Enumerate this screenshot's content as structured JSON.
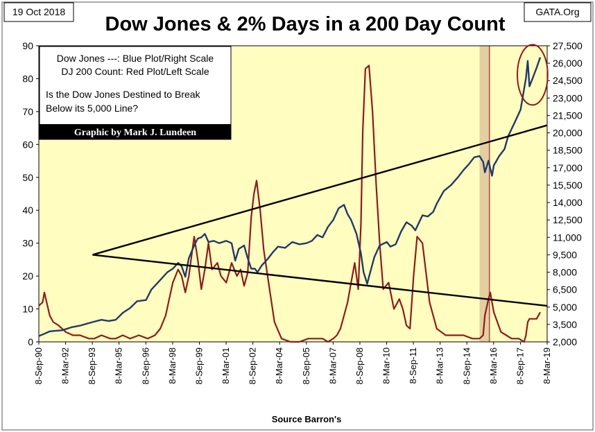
{
  "date_label": "19 Oct 2018",
  "source_label": "GATA.Org",
  "chart_data": {
    "type": "line",
    "title": "Dow Jones & 2% Days in a 200 Day Count",
    "xlabel": "Source Barron's",
    "x_ticks": [
      "8-Sep-90",
      "8-Mar-92",
      "8-Sep-93",
      "8-Mar-95",
      "8-Sep-96",
      "8-Mar-98",
      "8-Sep-99",
      "8-Mar-01",
      "8-Sep-02",
      "8-Mar-04",
      "8-Sep-05",
      "8-Mar-07",
      "8-Sep-08",
      "8-Mar-10",
      "8-Sep-11",
      "8-Mar-13",
      "8-Sep-14",
      "8-Mar-16",
      "8-Sep-17",
      "8-Mar-19"
    ],
    "x_range": [
      1990.69,
      2019.19
    ],
    "left_axis": {
      "label": "DJ 200 Count",
      "ylim": [
        0,
        90
      ],
      "ticks": [
        0,
        10,
        20,
        30,
        40,
        50,
        60,
        70,
        80,
        90
      ]
    },
    "right_axis": {
      "label": "Dow Jones",
      "ylim": [
        2000,
        27500
      ],
      "ticks": [
        "2,000",
        "3,500",
        "5,000",
        "6,500",
        "8,000",
        "9,500",
        "11,000",
        "12,500",
        "14,000",
        "15,500",
        "17,000",
        "18,500",
        "20,000",
        "21,500",
        "23,000",
        "24,500",
        "26,000",
        "27,500"
      ]
    },
    "legend_lines": [
      "Dow Jones ---: Blue Plot/Right Scale",
      "DJ 200 Count: Red Plot/Left Scale"
    ],
    "question_lines": [
      "Is the Dow Jones Destined to Break",
      "Below its 5,000 Line?"
    ],
    "credit": "Graphic by Mark J. Lundeen",
    "colors": {
      "plot_bg": "#fffdc0",
      "dow": "#1f3a68",
      "count": "#8b1c1c",
      "band": "#e3cfa0",
      "band_edge": "#b05050",
      "circle": "#8b1c1c",
      "trend": "#000000"
    },
    "series": [
      {
        "name": "Dow Jones",
        "axis": "right",
        "x": [
          1990.69,
          1991.0,
          1991.3,
          1991.6,
          1992.0,
          1992.5,
          1993.0,
          1993.7,
          1994.2,
          1994.6,
          1995.0,
          1995.4,
          1995.8,
          1996.2,
          1996.7,
          1997.0,
          1997.3,
          1997.6,
          1997.9,
          1998.2,
          1998.5,
          1998.7,
          1998.9,
          1999.1,
          1999.4,
          1999.6,
          1999.8,
          2000.0,
          2000.2,
          2000.5,
          2000.8,
          2001.0,
          2001.2,
          2001.5,
          2001.7,
          2001.9,
          2002.2,
          2002.4,
          2002.6,
          2002.8,
          2002.95,
          2003.2,
          2003.5,
          2003.8,
          2004.1,
          2004.5,
          2004.9,
          2005.3,
          2005.7,
          2006.0,
          2006.3,
          2006.6,
          2006.9,
          2007.2,
          2007.5,
          2007.8,
          2008.0,
          2008.2,
          2008.5,
          2008.75,
          2008.9,
          2009.1,
          2009.2,
          2009.5,
          2009.8,
          2010.2,
          2010.4,
          2010.7,
          2011.0,
          2011.3,
          2011.6,
          2011.8,
          2012.2,
          2012.5,
          2012.8,
          2013.0,
          2013.4,
          2013.8,
          2014.2,
          2014.5,
          2014.8,
          2015.1,
          2015.4,
          2015.6,
          2015.7,
          2015.9,
          2016.1,
          2016.2,
          2016.5,
          2016.8,
          2017.0,
          2017.4,
          2017.7,
          2018.0,
          2018.1,
          2018.2,
          2018.4,
          2018.6,
          2018.8
        ],
        "values": [
          2500,
          2700,
          2900,
          2950,
          3000,
          3250,
          3400,
          3700,
          3900,
          3800,
          3900,
          4500,
          4900,
          5500,
          5600,
          6500,
          7000,
          7500,
          8000,
          8300,
          8800,
          8500,
          7600,
          9200,
          10300,
          10900,
          11000,
          11300,
          10600,
          10700,
          10500,
          10600,
          10700,
          10500,
          9000,
          10000,
          10300,
          9200,
          8300,
          8300,
          8000,
          8600,
          9100,
          9700,
          10200,
          10100,
          10600,
          10400,
          10500,
          10700,
          11200,
          11000,
          11900,
          12500,
          13500,
          13800,
          13000,
          12500,
          11300,
          9600,
          8000,
          7000,
          7600,
          9300,
          10300,
          10600,
          10200,
          10400,
          11500,
          12300,
          12000,
          11600,
          12900,
          12800,
          13200,
          13900,
          15000,
          15500,
          16200,
          16800,
          17300,
          17900,
          18000,
          17500,
          16600,
          17600,
          16300,
          17200,
          18000,
          18600,
          19700,
          21000,
          22000,
          24700,
          26200,
          24000,
          24800,
          25600,
          26500
        ]
      },
      {
        "name": "DJ 200 Count",
        "axis": "left",
        "x": [
          1990.69,
          1990.9,
          1991.0,
          1991.3,
          1991.5,
          1991.8,
          1992.2,
          1992.6,
          1993.0,
          1993.5,
          1993.8,
          1994.2,
          1994.7,
          1995.0,
          1995.4,
          1995.8,
          1996.3,
          1996.8,
          1997.2,
          1997.5,
          1997.8,
          1998.0,
          1998.2,
          1998.5,
          1998.7,
          1998.9,
          1999.1,
          1999.4,
          1999.6,
          1999.8,
          2000.0,
          2000.2,
          2000.4,
          2000.7,
          2000.9,
          2001.2,
          2001.5,
          2001.8,
          2002.0,
          2002.2,
          2002.4,
          2002.6,
          2002.75,
          2002.9,
          2003.1,
          2003.3,
          2003.6,
          2003.9,
          2004.3,
          2004.8,
          2005.3,
          2005.8,
          2006.3,
          2006.6,
          2006.9,
          2007.2,
          2007.4,
          2007.6,
          2007.8,
          2008.0,
          2008.2,
          2008.4,
          2008.6,
          2008.75,
          2008.85,
          2009.0,
          2009.2,
          2009.4,
          2009.6,
          2009.8,
          2010.0,
          2010.3,
          2010.6,
          2010.9,
          2011.1,
          2011.3,
          2011.5,
          2011.7,
          2011.9,
          2012.2,
          2012.6,
          2013.0,
          2013.5,
          2014.0,
          2014.5,
          2015.0,
          2015.4,
          2015.6,
          2015.7,
          2015.9,
          2016.0,
          2016.2,
          2016.4,
          2016.6,
          2016.9,
          2017.2,
          2017.6,
          2017.9,
          2018.0,
          2018.1,
          2018.2,
          2018.4,
          2018.6,
          2018.8
        ],
        "values": [
          11,
          12,
          15,
          8,
          6,
          5,
          3,
          2,
          2,
          1,
          1,
          2,
          1,
          1,
          2,
          1,
          2,
          1,
          2,
          4,
          8,
          13,
          18,
          22,
          20,
          15,
          20,
          32,
          25,
          16,
          22,
          30,
          22,
          24,
          20,
          18,
          24,
          20,
          22,
          17,
          21,
          38,
          45,
          49,
          40,
          28,
          17,
          6,
          1,
          0,
          0,
          1,
          1,
          1,
          0,
          1,
          2,
          4,
          8,
          12,
          18,
          24,
          16,
          36,
          64,
          83,
          84,
          70,
          48,
          30,
          16,
          18,
          10,
          13,
          10,
          5,
          4,
          20,
          32,
          30,
          12,
          4,
          2,
          2,
          2,
          1,
          1,
          2,
          8,
          13,
          15,
          9,
          6,
          3,
          2,
          1,
          1,
          0,
          2,
          6,
          7,
          7,
          7,
          9
        ]
      }
    ],
    "trend_lines": [
      {
        "name": "upper-trend",
        "x": [
          1993.7,
          2019.19
        ],
        "right_values": [
          9500,
          20650
        ]
      },
      {
        "name": "lower-trend",
        "x": [
          1993.7,
          2019.19
        ],
        "right_values": [
          9500,
          5100
        ]
      }
    ],
    "band": {
      "x": [
        2015.4,
        2016.0
      ]
    },
    "band_edge": {
      "x": 2015.95
    },
    "highlight_circle": {
      "cx": 2018.37,
      "cy_right": 25000,
      "rx_years": 0.85,
      "ry_right": 2600
    }
  }
}
